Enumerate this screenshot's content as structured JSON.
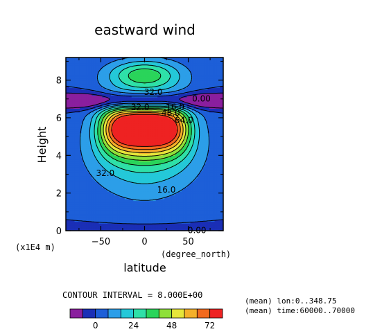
{
  "chart_data": {
    "type": "contour",
    "title": "eastward wind",
    "xlabel": "latitude",
    "xunits": "(degree_north)",
    "ylabel": "Height",
    "yunits": "(x1E4 m)",
    "xlim": [
      -90,
      90
    ],
    "ylim": [
      0,
      9.2
    ],
    "xticks": [
      -50,
      0,
      50
    ],
    "xtick_labels": [
      "−50",
      "0",
      "50"
    ],
    "yticks": [
      0,
      2,
      4,
      6,
      8
    ],
    "ytick_labels": [
      "0",
      "2",
      "4",
      "6",
      "8"
    ],
    "contour_interval_text": "CONTOUR INTERVAL = 8.000E+00",
    "contour_interval": 8,
    "levels": [
      -8,
      0,
      8,
      16,
      24,
      32,
      40,
      48,
      56,
      64,
      72
    ],
    "colorbar": {
      "colors": [
        "#8a1f9e",
        "#1a2fb6",
        "#1d5fd8",
        "#2c9ee8",
        "#24c8d8",
        "#2fe0a8",
        "#2ad45a",
        "#8ee03a",
        "#e6e63a",
        "#f5b02a",
        "#f26a1e",
        "#ee2222"
      ],
      "tick_values": [
        0,
        24,
        48,
        72
      ],
      "tick_labels": [
        "0",
        "24",
        "48",
        "72"
      ]
    },
    "contour_labels": [
      {
        "text": "32.0",
        "lat": -45,
        "h": 3.1
      },
      {
        "text": "16.0",
        "lat": 25,
        "h": 2.2
      },
      {
        "text": "0.00",
        "lat": 60,
        "h": 0.05
      },
      {
        "text": "32.0",
        "lat": -5,
        "h": 6.6
      },
      {
        "text": "0.00",
        "lat": 65,
        "h": 7.05
      },
      {
        "text": "32.0",
        "lat": 10,
        "h": 7.4
      },
      {
        "text": "16.0",
        "lat": 35,
        "h": 6.6
      },
      {
        "text": "48.0",
        "lat": 30,
        "h": 6.3
      },
      {
        "text": "64.0",
        "lat": 45,
        "h": 5.9
      }
    ],
    "annotations": [
      "(mean) lon:0..348.75",
      "(mean) time:60000..70000"
    ]
  }
}
